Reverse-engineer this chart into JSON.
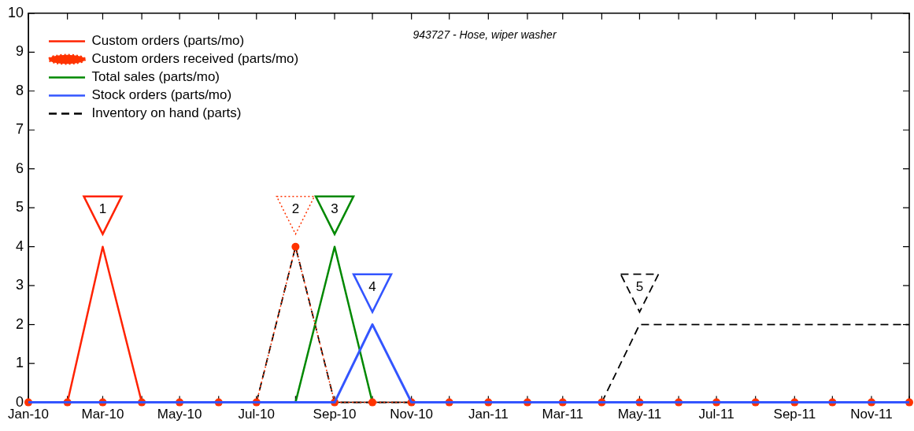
{
  "chart_data": {
    "type": "line",
    "title": "943727 - Hose, wiper washer",
    "x": [
      "2010-01",
      "2010-02",
      "2010-03",
      "2010-04",
      "2010-05",
      "2010-06",
      "2010-07",
      "2010-08",
      "2010-09",
      "2010-10",
      "2010-11",
      "2010-12",
      "2011-01",
      "2011-02",
      "2011-03",
      "2011-04",
      "2011-05",
      "2011-06",
      "2011-07",
      "2011-08",
      "2011-09",
      "2011-10",
      "2011-11",
      "2011-12"
    ],
    "xlim": [
      "2010-01",
      "2011-12"
    ],
    "xticks": [
      {
        "value": "2010-01",
        "label": "Jan-10"
      },
      {
        "value": "2010-02",
        "label": null
      },
      {
        "value": "2010-03",
        "label": "Mar-10"
      },
      {
        "value": "2010-04",
        "label": null
      },
      {
        "value": "2010-05",
        "label": "May-10"
      },
      {
        "value": "2010-06",
        "label": null
      },
      {
        "value": "2010-07",
        "label": "Jul-10"
      },
      {
        "value": "2010-08",
        "label": null
      },
      {
        "value": "2010-09",
        "label": "Sep-10"
      },
      {
        "value": "2010-10",
        "label": null
      },
      {
        "value": "2010-11",
        "label": "Nov-10"
      },
      {
        "value": "2010-12",
        "label": null
      },
      {
        "value": "2011-01",
        "label": "Jan-11"
      },
      {
        "value": "2011-02",
        "label": null
      },
      {
        "value": "2011-03",
        "label": "Mar-11"
      },
      {
        "value": "2011-04",
        "label": null
      },
      {
        "value": "2011-05",
        "label": "May-11"
      },
      {
        "value": "2011-06",
        "label": null
      },
      {
        "value": "2011-07",
        "label": "Jul-11"
      },
      {
        "value": "2011-08",
        "label": null
      },
      {
        "value": "2011-09",
        "label": "Sep-11"
      },
      {
        "value": "2011-10",
        "label": null
      },
      {
        "value": "2011-11",
        "label": "Nov-11"
      },
      {
        "value": "2011-12",
        "label": null
      }
    ],
    "ylim": [
      0,
      10
    ],
    "yticks": [
      0,
      1,
      2,
      3,
      4,
      5,
      6,
      7,
      8,
      9,
      10
    ],
    "grid": false,
    "legend": "top left",
    "series": [
      {
        "name": "Custom orders (parts/mo)",
        "color": "#ff2200",
        "line_style": "solid",
        "marker": "none",
        "values": [
          null,
          0,
          4,
          0,
          null,
          null,
          null,
          null,
          null,
          null,
          null,
          null,
          null,
          null,
          null,
          null,
          null,
          null,
          null,
          null,
          null,
          null,
          null,
          null
        ]
      },
      {
        "name": "Custom orders received (parts/mo)",
        "color": "#ff3300",
        "line_style": "dotted",
        "marker": "circle",
        "values": [
          0,
          0,
          0,
          0,
          0,
          0,
          0,
          4,
          0,
          0,
          0,
          0,
          0,
          0,
          0,
          0,
          0,
          0,
          0,
          0,
          0,
          0,
          0,
          0
        ]
      },
      {
        "name": "Total sales (parts/mo)",
        "color": "#008800",
        "line_style": "solid",
        "marker": "none",
        "values": [
          null,
          null,
          null,
          null,
          null,
          null,
          null,
          0,
          4,
          0,
          null,
          null,
          null,
          null,
          null,
          null,
          null,
          null,
          null,
          null,
          null,
          null,
          null,
          null
        ]
      },
      {
        "name": "Stock orders (parts/mo)",
        "color": "#3355ff",
        "line_style": "solid",
        "marker": "none",
        "values": [
          0,
          0,
          0,
          0,
          0,
          0,
          0,
          0,
          0,
          2,
          0,
          0,
          0,
          0,
          0,
          0,
          0,
          0,
          0,
          0,
          0,
          0,
          0,
          0
        ]
      },
      {
        "name": "Inventory on hand (parts)",
        "color": "#000000",
        "line_style": "dashed",
        "marker": "none",
        "values": [
          null,
          null,
          null,
          null,
          null,
          null,
          0,
          4,
          0,
          0,
          0,
          null,
          null,
          null,
          null,
          0,
          2,
          2,
          2,
          2,
          2,
          2,
          2,
          2
        ]
      }
    ],
    "annotations": [
      {
        "text": "1",
        "x": "2010-03",
        "y": 4
      },
      {
        "text": "2",
        "x": "2010-08",
        "y": 4
      },
      {
        "text": "3",
        "x": "2010-09",
        "y": 4
      },
      {
        "text": "4",
        "x": "2010-10",
        "y": 2
      },
      {
        "text": "5",
        "x": "2011-05",
        "y": 2
      }
    ]
  }
}
